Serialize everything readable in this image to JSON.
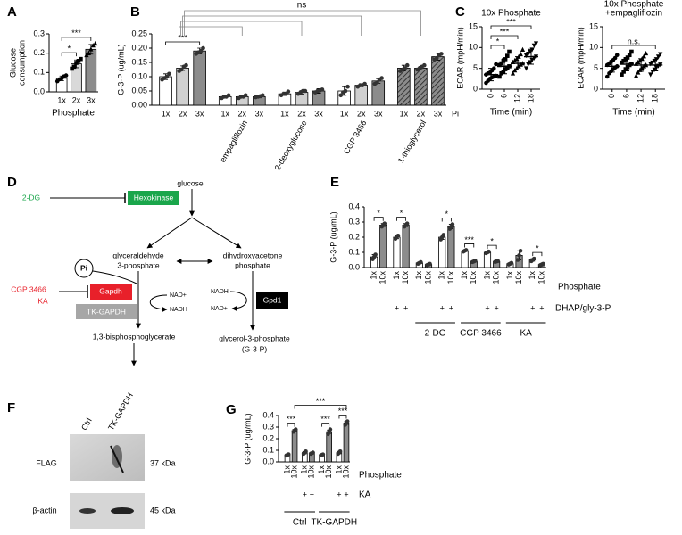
{
  "chart_data": [
    {
      "panel": "A",
      "type": "bar",
      "ylabel": [
        "Glucose",
        "consumption"
      ],
      "xlabel": "Phosphate",
      "categories": [
        "1x",
        "2x",
        "3x"
      ],
      "values": [
        0.07,
        0.145,
        0.22
      ],
      "errors": [
        0.012,
        0.02,
        0.025
      ],
      "points": [
        [
          0.055,
          0.065,
          0.07,
          0.08,
          0.085
        ],
        [
          0.12,
          0.13,
          0.15,
          0.16,
          0.17
        ],
        [
          0.19,
          0.2,
          0.22,
          0.24,
          0.25
        ]
      ],
      "colors": [
        "#ffffff",
        "#d9d9d9",
        "#8c8c8c"
      ],
      "markers": [
        "circle",
        "square",
        "triangle"
      ],
      "point_color": "#000000",
      "ylim": [
        0,
        0.3
      ],
      "yticks": [
        {
          "value": 0,
          "label": "0.0"
        },
        0.1,
        0.2,
        0.3
      ],
      "significance": [
        {
          "from": 0,
          "to": 1,
          "label": "*"
        },
        {
          "from": 0,
          "to": 2,
          "label": "***"
        }
      ]
    },
    {
      "panel": "B",
      "type": "bar",
      "ylabel": "G-3-P (ug/mL)",
      "end_label": "Pi",
      "categories": [
        "1x",
        "2x",
        "3x",
        "1x",
        "2x",
        "3x",
        "1x",
        "2x",
        "3x",
        "1x",
        "2x",
        "3x",
        "1x",
        "2x",
        "3x"
      ],
      "values": [
        0.1,
        0.13,
        0.19,
        0.03,
        0.03,
        0.03,
        0.04,
        0.045,
        0.05,
        0.05,
        0.07,
        0.085,
        0.13,
        0.13,
        0.17
      ],
      "errors": [
        0.01,
        0.008,
        0.01,
        0.005,
        0.004,
        0.004,
        0.006,
        0.006,
        0.008,
        0.015,
        0.005,
        0.008,
        0.01,
        0.006,
        0.012
      ],
      "points": [
        [
          0.09,
          0.095,
          0.1,
          0.11
        ],
        [
          0.12,
          0.125,
          0.135,
          0.14
        ],
        [
          0.18,
          0.185,
          0.19,
          0.2
        ],
        [
          0.025,
          0.03,
          0.03,
          0.035
        ],
        [
          0.025,
          0.03,
          0.03,
          0.035
        ],
        [
          0.028,
          0.03,
          0.032,
          0.035
        ],
        [
          0.035,
          0.04,
          0.04,
          0.048
        ],
        [
          0.04,
          0.045,
          0.05,
          0.05
        ],
        [
          0.045,
          0.05,
          0.052,
          0.055
        ],
        [
          0.035,
          0.045,
          0.05,
          0.065
        ],
        [
          0.065,
          0.07,
          0.07,
          0.075
        ],
        [
          0.075,
          0.08,
          0.09,
          0.095
        ],
        [
          0.12,
          0.125,
          0.13,
          0.14
        ],
        [
          0.125,
          0.13,
          0.135,
          0.14
        ],
        [
          0.16,
          0.165,
          0.175,
          0.18
        ]
      ],
      "colors": [
        "#ffffff",
        "#d0d0d0",
        "#8c8c8c"
      ],
      "point_color": "#333333",
      "ylim": [
        0,
        0.25
      ],
      "yticks": [
        {
          "value": 0,
          "label": "0.00"
        },
        {
          "value": 0.05,
          "label": "0.05"
        },
        {
          "value": 0.1,
          "label": "0.10"
        },
        {
          "value": 0.15,
          "label": "0.15"
        },
        {
          "value": 0.2,
          "label": "0.20"
        },
        {
          "value": 0.25,
          "label": "0.25"
        }
      ],
      "groups": [
        {
          "name": "empagliflozin",
          "first": 3,
          "last": 5
        },
        {
          "name": "2-deoxyglucose",
          "first": 6,
          "last": 8
        },
        {
          "name": "CGP 3466",
          "first": 9,
          "last": 11
        },
        {
          "name": "1-thioglycerol",
          "first": 12,
          "last": 14,
          "hatch": true
        }
      ],
      "significance": [
        {
          "from": 0,
          "to": 2,
          "label": "***"
        }
      ],
      "ns_bracket": {
        "label": "ns",
        "from": 1,
        "to": [
          4,
          7,
          10,
          13
        ]
      }
    },
    {
      "panel": "C",
      "type": "scatter",
      "title": [
        "10x Phosphate"
      ],
      "ylabel": "ECAR (mpH/min)",
      "xlabel": "Time (min)",
      "x": [
        0,
        6,
        12,
        18
      ],
      "values": [
        3.5,
        5.5,
        6.2,
        7.8
      ],
      "errors": [
        1.5,
        1.8,
        1.6,
        1.8
      ],
      "points": [
        [
          1.5,
          2,
          2.5,
          2.8,
          3,
          3.2,
          3.5,
          3.8,
          4,
          4.5,
          5,
          6
        ],
        [
          3,
          3.8,
          4.2,
          4.8,
          5.2,
          5.5,
          5.8,
          6.2,
          6.8,
          7.2,
          8,
          9
        ],
        [
          3.8,
          4.5,
          5,
          5.5,
          5.9,
          6.2,
          6.5,
          6.9,
          7.3,
          7.8,
          8.4,
          9.5
        ],
        [
          5,
          6,
          6.5,
          7,
          7.5,
          7.8,
          8.1,
          8.5,
          9,
          9.5,
          10.5,
          11
        ]
      ],
      "markers": [
        "circle",
        "square",
        "triangle",
        "triangle-down"
      ],
      "point_color": "#000000",
      "xlim": [
        -4,
        22
      ],
      "xticks": [
        0,
        6,
        12,
        18
      ],
      "ylim": [
        0,
        15
      ],
      "yticks": [
        0,
        5,
        10,
        15
      ],
      "significance": [
        {
          "from": 0,
          "to": 1,
          "label": "*"
        },
        {
          "from": 0,
          "to": 2,
          "label": "***"
        },
        {
          "from": 0,
          "to": 3,
          "label": "***"
        }
      ]
    },
    {
      "type": "scatter",
      "title": [
        "10x Phosphate",
        "+empagliflozin"
      ],
      "ylabel": "ECAR (mpH/min)",
      "xlabel": "Time (min)",
      "x": [
        0,
        6,
        12,
        18
      ],
      "values": [
        5.5,
        6,
        5.8,
        5.8
      ],
      "errors": [
        1.4,
        1.6,
        1.5,
        1.4
      ],
      "points": [
        [
          3,
          3.8,
          4.3,
          4.8,
          5.2,
          5.5,
          5.8,
          6.2,
          6.6,
          7,
          7.5,
          8.2
        ],
        [
          3.5,
          4.2,
          4.8,
          5.3,
          5.8,
          6.1,
          6.4,
          6.8,
          7.2,
          7.6,
          8.2,
          9
        ],
        [
          3.2,
          4,
          4.6,
          5.1,
          5.5,
          5.8,
          6.1,
          6.5,
          6.9,
          7.3,
          7.9,
          8.6
        ],
        [
          3.5,
          4.2,
          4.7,
          5.2,
          5.6,
          5.9,
          6.1,
          6.4,
          6.8,
          7.2,
          7.8,
          8.4
        ]
      ],
      "markers": [
        "circle",
        "square",
        "triangle",
        "triangle-down"
      ],
      "point_color": "#000000",
      "xlim": [
        -4,
        22
      ],
      "xticks": [
        0,
        6,
        12,
        18
      ],
      "ylim": [
        0,
        15
      ],
      "yticks": [
        0,
        5,
        10,
        15
      ],
      "significance": [
        {
          "from": 0,
          "to": 3,
          "label": "n.s."
        }
      ]
    },
    {
      "panel": "E",
      "type": "bar",
      "ylabel": "G-3-P (ug/mL)",
      "xlabel": "Phosphate",
      "categories": [
        "1x",
        "10x",
        "1x",
        "10x",
        "1x",
        "10x",
        "1x",
        "10x",
        "1x",
        "10x",
        "1x",
        "10x",
        "1x",
        "10x",
        "1x",
        "10x"
      ],
      "values": [
        0.07,
        0.28,
        0.2,
        0.28,
        0.03,
        0.02,
        0.2,
        0.27,
        0.11,
        0.04,
        0.1,
        0.04,
        0.025,
        0.08,
        0.05,
        0.02
      ],
      "errors": [
        0.015,
        0.01,
        0.01,
        0.01,
        0.004,
        0.004,
        0.015,
        0.015,
        0.005,
        0.004,
        0.005,
        0.003,
        0.005,
        0.03,
        0.008,
        0.004
      ],
      "points": [
        [
          0.055,
          0.07,
          0.085
        ],
        [
          0.27,
          0.28,
          0.29
        ],
        [
          0.19,
          0.2,
          0.21
        ],
        [
          0.27,
          0.28,
          0.29
        ],
        [
          0.025,
          0.03,
          0.035
        ],
        [
          0.016,
          0.02,
          0.024
        ],
        [
          0.185,
          0.2,
          0.215
        ],
        [
          0.255,
          0.27,
          0.285
        ],
        [
          0.105,
          0.11,
          0.115
        ],
        [
          0.036,
          0.04,
          0.044
        ],
        [
          0.095,
          0.1,
          0.105
        ],
        [
          0.037,
          0.04,
          0.043
        ],
        [
          0.02,
          0.025,
          0.03
        ],
        [
          0.05,
          0.08,
          0.11
        ],
        [
          0.042,
          0.05,
          0.058
        ],
        [
          0.016,
          0.02,
          0.024
        ]
      ],
      "colors": [
        "#ffffff",
        "#8c8c8c"
      ],
      "point_color": "#333333",
      "ylim": [
        0,
        0.4
      ],
      "yticks": [
        {
          "value": 0,
          "label": "0.0"
        },
        0.1,
        0.2,
        0.3,
        0.4
      ],
      "plus_row": {
        "label": "DHAP/gly-3-P",
        "marks": [
          null,
          null,
          "+",
          "+",
          null,
          null,
          "+",
          "+",
          null,
          null,
          "+",
          "+",
          null,
          null,
          "+",
          "+"
        ]
      },
      "groups": [
        {
          "name": "2-DG",
          "first": 4,
          "last": 7
        },
        {
          "name": "CGP 3466",
          "first": 8,
          "last": 11
        },
        {
          "name": "KA",
          "first": 12,
          "last": 15
        }
      ],
      "significance": [
        {
          "from": 0,
          "to": 1,
          "label": "*"
        },
        {
          "from": 2,
          "to": 3,
          "label": "*"
        },
        {
          "from": 6,
          "to": 7,
          "label": "*"
        },
        {
          "from": 8,
          "to": 9,
          "label": "***"
        },
        {
          "from": 10,
          "to": 11,
          "label": "*"
        },
        {
          "from": 14,
          "to": 15,
          "label": "*"
        }
      ]
    },
    {
      "panel": "G",
      "type": "bar",
      "ylabel": "G-3-P (ug/mL)",
      "xlabel": "Phosphate",
      "categories": [
        "1x",
        "10x",
        "1x",
        "10x",
        "1x",
        "10x",
        "1x",
        "10x"
      ],
      "values": [
        0.06,
        0.27,
        0.08,
        0.075,
        0.06,
        0.26,
        0.08,
        0.335
      ],
      "errors": [
        0.006,
        0.01,
        0.01,
        0.004,
        0.004,
        0.015,
        0.01,
        0.012
      ],
      "points": [
        [
          0.055,
          0.06,
          0.065
        ],
        [
          0.26,
          0.27,
          0.28
        ],
        [
          0.07,
          0.08,
          0.09
        ],
        [
          0.07,
          0.075,
          0.08
        ],
        [
          0.056,
          0.06,
          0.064
        ],
        [
          0.24,
          0.26,
          0.28
        ],
        [
          0.07,
          0.08,
          0.09
        ],
        [
          0.32,
          0.335,
          0.35
        ]
      ],
      "colors": [
        "#ffffff",
        "#8c8c8c"
      ],
      "point_color": "#333333",
      "ylim": [
        0,
        0.4
      ],
      "yticks": [
        {
          "value": 0,
          "label": "0.0"
        },
        0.1,
        0.2,
        0.3,
        0.4
      ],
      "plus_row": {
        "label": "KA",
        "marks": [
          null,
          null,
          "+",
          "+",
          null,
          null,
          "+",
          "+"
        ]
      },
      "groups": [
        {
          "name": "Ctrl",
          "first": 0,
          "last": 3
        },
        {
          "name": "TK-GAPDH",
          "first": 4,
          "last": 7
        }
      ],
      "significance": [
        {
          "from": 0,
          "to": 1,
          "label": "***"
        },
        {
          "from": 4,
          "to": 5,
          "label": "***"
        },
        {
          "from": 6,
          "to": 7,
          "label": "***"
        },
        {
          "from": 1,
          "to": 7,
          "label": "***"
        }
      ]
    }
  ],
  "diagram": {
    "panel": "D",
    "glucose": "glucose",
    "inhibitor_2dg": "2-DG",
    "hexokinase": "Hexokinase",
    "gap": [
      "glyceraldehyde",
      "3-phosphate"
    ],
    "dhap": [
      "dihydroxyacetone",
      "phosphate"
    ],
    "pi": "Pi",
    "inhibitor_cgp": "CGP 3466",
    "inhibitor_ka": "KA",
    "gapdh": "Gapdh",
    "tk_gapdh": "TK-GAPDH",
    "gapdh_cofactors": [
      "NAD+",
      "NADH"
    ],
    "gpd1_cofactors": [
      "NADH",
      "NAD+"
    ],
    "gpd1": "Gpd1",
    "bpg": "1,3-bisphosphoglycerate",
    "g3p": [
      "glycerol-3-phosphate",
      "(G-3-P)"
    ]
  },
  "blot": {
    "panel": "F",
    "lanes": [
      "Ctrl",
      "TK-GAPDH"
    ],
    "bands": [
      {
        "name": "FLAG",
        "size": "37 kDa"
      },
      {
        "name": "β-actin",
        "size": "45 kDa"
      }
    ]
  }
}
